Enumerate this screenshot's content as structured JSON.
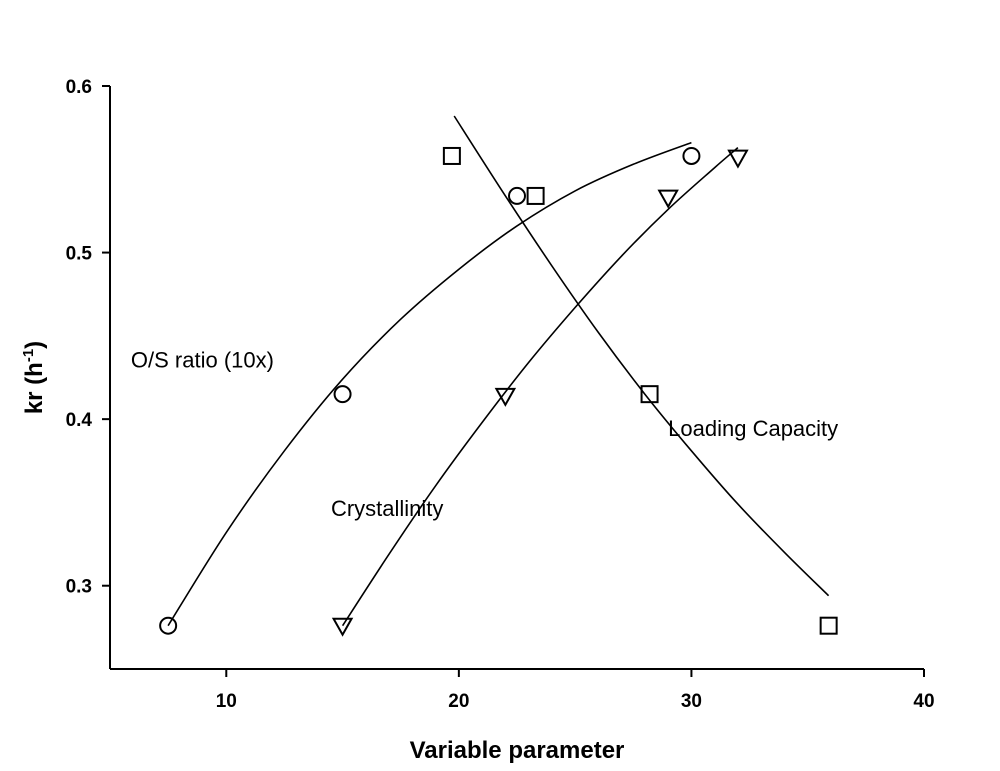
{
  "chart_data": {
    "type": "scatter",
    "xlabel": "Variable parameter",
    "ylabel": "kr (h",
    "ylabel_sup": "-1",
    "ylabel_end": ")",
    "xlim": [
      5,
      40
    ],
    "ylim": [
      0.25,
      0.6
    ],
    "xticks": [
      10,
      20,
      30,
      40
    ],
    "yticks": [
      0.3,
      0.4,
      0.5,
      0.6
    ],
    "xtick_labels": [
      "10",
      "20",
      "30",
      "40"
    ],
    "ytick_labels": [
      "0.3",
      "0.4",
      "0.5",
      "0.6"
    ],
    "grid": false,
    "series": [
      {
        "name": "O/S ratio (10x)",
        "marker": "circle",
        "points": [
          [
            7.5,
            0.276
          ],
          [
            15.0,
            0.415
          ],
          [
            22.5,
            0.534
          ],
          [
            30.0,
            0.558
          ]
        ],
        "fit": [
          [
            7.5,
            0.276
          ],
          [
            10.0,
            0.332
          ],
          [
            12.5,
            0.381
          ],
          [
            15.0,
            0.424
          ],
          [
            17.5,
            0.46
          ],
          [
            20.0,
            0.49
          ],
          [
            22.5,
            0.516
          ],
          [
            25.0,
            0.537
          ],
          [
            27.5,
            0.553
          ],
          [
            30.0,
            0.566
          ]
        ]
      },
      {
        "name": "Crystallinity",
        "marker": "triangle-down",
        "points": [
          [
            15.0,
            0.276
          ],
          [
            22.0,
            0.414
          ],
          [
            29.0,
            0.533
          ],
          [
            32.0,
            0.557
          ]
        ],
        "fit": [
          [
            15.0,
            0.276
          ],
          [
            17.0,
            0.319
          ],
          [
            19.0,
            0.36
          ],
          [
            21.0,
            0.398
          ],
          [
            23.0,
            0.434
          ],
          [
            25.0,
            0.467
          ],
          [
            27.0,
            0.498
          ],
          [
            29.0,
            0.526
          ],
          [
            31.0,
            0.551
          ],
          [
            32.0,
            0.563
          ]
        ]
      },
      {
        "name": "Loading Capacity",
        "marker": "square",
        "points": [
          [
            19.7,
            0.558
          ],
          [
            23.3,
            0.534
          ],
          [
            28.2,
            0.415
          ],
          [
            35.9,
            0.276
          ]
        ],
        "fit": [
          [
            19.8,
            0.582
          ],
          [
            22.0,
            0.534
          ],
          [
            24.0,
            0.492
          ],
          [
            26.0,
            0.452
          ],
          [
            28.0,
            0.415
          ],
          [
            30.0,
            0.381
          ],
          [
            32.0,
            0.349
          ],
          [
            34.0,
            0.32
          ],
          [
            35.9,
            0.294
          ]
        ]
      }
    ],
    "annotations": [
      {
        "text": "O/S ratio (10x)",
        "x": 5.9,
        "y": 0.431
      },
      {
        "text": "Crystallinity",
        "x": 14.5,
        "y": 0.342
      },
      {
        "text": "Loading Capacity",
        "x": 29.0,
        "y": 0.39
      }
    ]
  }
}
